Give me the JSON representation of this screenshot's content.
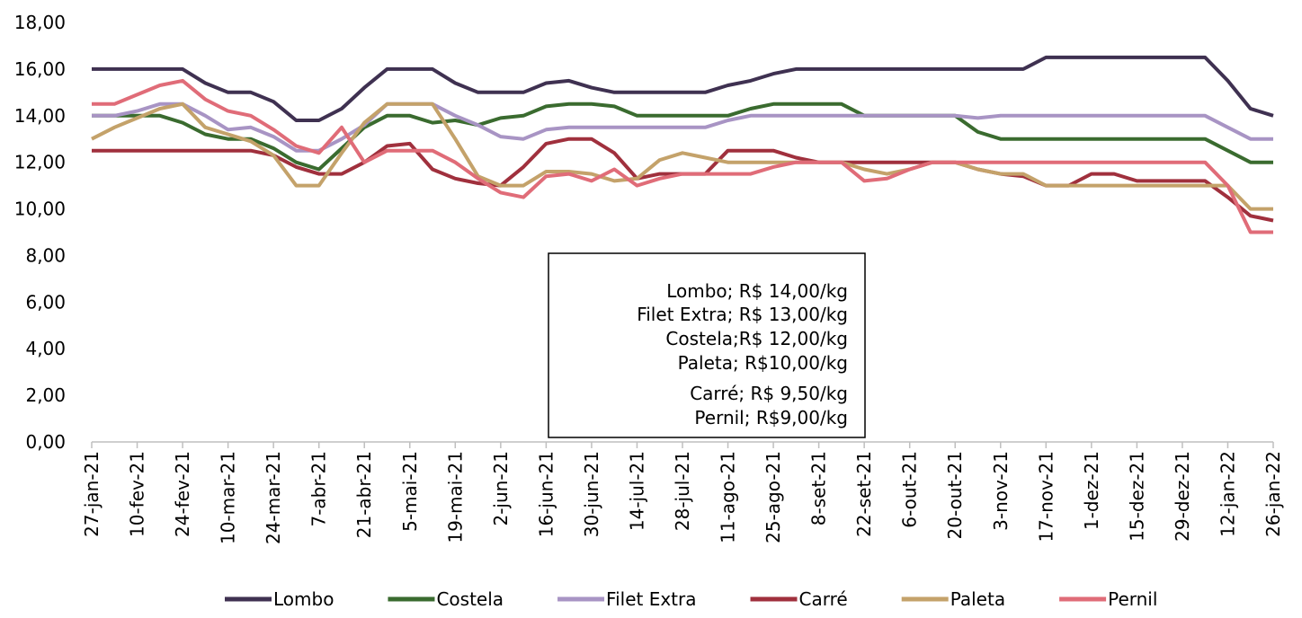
{
  "chart_data": {
    "type": "line",
    "categories": [
      "27-jan-21",
      null,
      "10-fev-21",
      null,
      "24-fev-21",
      null,
      "10-mar-21",
      null,
      "24-mar-21",
      null,
      "7-abr-21",
      null,
      "21-abr-21",
      null,
      "5-mai-21",
      null,
      "19-mai-21",
      null,
      "2-jun-21",
      null,
      "16-jun-21",
      null,
      "30-jun-21",
      null,
      "14-jul-21",
      null,
      "28-jul-21",
      null,
      "11-ago-21",
      null,
      "25-ago-21",
      null,
      "8-set-21",
      null,
      "22-set-21",
      null,
      "6-out-21",
      null,
      "20-out-21",
      null,
      "3-nov-21",
      null,
      "17-nov-21",
      null,
      "1-dez-21",
      null,
      "15-dez-21",
      null,
      "29-dez-21",
      null,
      "12-jan-22",
      null,
      "26-jan-22"
    ],
    "series": [
      {
        "name": "Lombo",
        "color": "#3f3151",
        "values": [
          16,
          16,
          16,
          16,
          16,
          15.4,
          15,
          15,
          14.6,
          13.8,
          13.8,
          14.3,
          15.2,
          16,
          16,
          16,
          15.4,
          15,
          15,
          15,
          15.4,
          15.5,
          15.2,
          15,
          15,
          15,
          15,
          15,
          15.3,
          15.5,
          15.8,
          16,
          16,
          16,
          16,
          16,
          16,
          16,
          16,
          16,
          16,
          16,
          16.5,
          16.5,
          16.5,
          16.5,
          16.5,
          16.5,
          16.5,
          16.5,
          15.5,
          14.3,
          14
        ]
      },
      {
        "name": "Costela",
        "color": "#3a6b2f",
        "values": [
          14,
          14,
          14,
          14,
          13.7,
          13.2,
          13,
          13,
          12.6,
          12,
          11.7,
          12.6,
          13.5,
          14,
          14,
          13.7,
          13.8,
          13.6,
          13.9,
          14,
          14.4,
          14.5,
          14.5,
          14.4,
          14,
          14,
          14,
          14,
          14,
          14.3,
          14.5,
          14.5,
          14.5,
          14.5,
          14,
          14,
          14,
          14,
          14,
          13.3,
          13,
          13,
          13,
          13,
          13,
          13,
          13,
          13,
          13,
          13,
          12.5,
          12,
          12
        ]
      },
      {
        "name": "Filet Extra",
        "color": "#a894c4",
        "values": [
          14,
          14,
          14.2,
          14.5,
          14.5,
          14,
          13.4,
          13.5,
          13.1,
          12.5,
          12.5,
          13,
          13.6,
          14.5,
          14.5,
          14.5,
          14,
          13.6,
          13.1,
          13,
          13.4,
          13.5,
          13.5,
          13.5,
          13.5,
          13.5,
          13.5,
          13.5,
          13.8,
          14,
          14,
          14,
          14,
          14,
          14,
          14,
          14,
          14,
          14,
          13.9,
          14,
          14,
          14,
          14,
          14,
          14,
          14,
          14,
          14,
          14,
          13.5,
          13,
          13
        ]
      },
      {
        "name": "Carré",
        "color": "#a0303d",
        "values": [
          12.5,
          12.5,
          12.5,
          12.5,
          12.5,
          12.5,
          12.5,
          12.5,
          12.3,
          11.8,
          11.5,
          11.5,
          12,
          12.7,
          12.8,
          11.7,
          11.3,
          11.1,
          11,
          11.8,
          12.8,
          13,
          13,
          12.4,
          11.3,
          11.5,
          11.5,
          11.5,
          12.5,
          12.5,
          12.5,
          12.2,
          12,
          12,
          12,
          12,
          12,
          12,
          12,
          11.7,
          11.5,
          11.4,
          11,
          11,
          11.5,
          11.5,
          11.2,
          11.2,
          11.2,
          11.2,
          10.5,
          9.7,
          9.5
        ]
      },
      {
        "name": "Paleta",
        "color": "#c4a26a",
        "values": [
          13,
          13.5,
          13.9,
          14.3,
          14.5,
          13.5,
          13.2,
          12.9,
          12.3,
          11,
          11,
          12.4,
          13.7,
          14.5,
          14.5,
          14.5,
          13,
          11.4,
          11,
          11,
          11.6,
          11.6,
          11.5,
          11.2,
          11.3,
          12.1,
          12.4,
          12.2,
          12,
          12,
          12,
          12,
          12,
          12,
          11.7,
          11.5,
          11.7,
          12,
          12,
          11.7,
          11.5,
          11.5,
          11,
          11,
          11,
          11,
          11,
          11,
          11,
          11,
          11,
          10,
          10
        ]
      },
      {
        "name": "Pernil",
        "color": "#e06c78",
        "values": [
          14.5,
          14.5,
          14.9,
          15.3,
          15.5,
          14.7,
          14.2,
          14,
          13.4,
          12.7,
          12.4,
          13.5,
          12,
          12.5,
          12.5,
          12.5,
          12,
          11.3,
          10.7,
          10.5,
          11.4,
          11.5,
          11.2,
          11.7,
          11,
          11.3,
          11.5,
          11.5,
          11.5,
          11.5,
          11.8,
          12,
          12,
          12,
          11.2,
          11.3,
          11.7,
          12,
          12,
          12,
          12,
          12,
          12,
          12,
          12,
          12,
          12,
          12,
          12,
          12,
          11,
          9,
          9
        ]
      }
    ],
    "ylim": [
      0,
      18
    ],
    "yticks": [
      {
        "value": 0,
        "label": "0,00"
      },
      {
        "value": 2,
        "label": "2,00"
      },
      {
        "value": 4,
        "label": "4,00"
      },
      {
        "value": 6,
        "label": "6,00"
      },
      {
        "value": 8,
        "label": "8,00"
      },
      {
        "value": 10,
        "label": "10,00"
      },
      {
        "value": 12,
        "label": "12,00"
      },
      {
        "value": 14,
        "label": "14,00"
      },
      {
        "value": 16,
        "label": "16,00"
      },
      {
        "value": 18,
        "label": "18,00"
      }
    ],
    "grid": false,
    "legend": "bottom",
    "annotation": [
      "Lombo; R$ 14,00/kg",
      "Filet Extra; R$ 13,00/kg",
      "Costela;R$ 12,00/kg",
      "Paleta; R$10,00/kg",
      "Carré; R$ 9,50/kg",
      "Pernil; R$9,00/kg"
    ]
  }
}
